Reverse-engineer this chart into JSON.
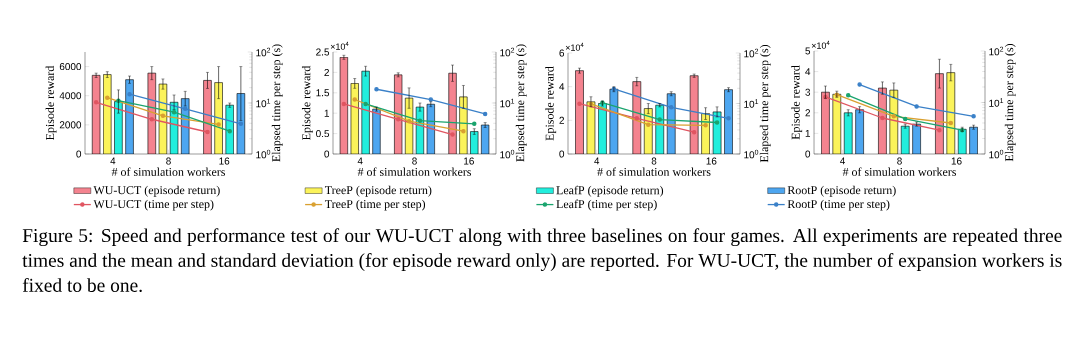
{
  "chart_data": [
    {
      "type": "bar",
      "xlabel": "# of simulation workers",
      "ylabel": "Episode reward",
      "y2label": "Elapsed time per step (s)",
      "categories": [
        "4",
        "8",
        "16"
      ],
      "ylim": [
        0,
        7000
      ],
      "yticks": [
        0,
        2000,
        4000,
        6000
      ],
      "y2lim": [
        1,
        100
      ],
      "y2ticks": [
        {
          "value": 1,
          "label": "10$^{0}$"
        },
        {
          "value": 10,
          "label": "10$^{1}$"
        },
        {
          "value": 100,
          "label": "10$^{2}$"
        }
      ],
      "log": "y2",
      "marker": "circle",
      "legend": "bottom",
      "annotations": [
        "Figure 5: Speed and performance test of our WU-UCT along with three baselines on four games. All experiments are repeated three times and the mean and standard deviation (for episode reward only) are reported. For WU-UCT, the number of expansion workers is fixed to be one."
      ],
      "series": [
        {
          "name": "WU-UCT (episode return)",
          "color": "#f4838f",
          "values": [
            5400,
            5550,
            5050
          ],
          "errors": [
            150,
            450,
            550
          ]
        },
        {
          "name": "TreeP (episode return)",
          "color": "#fbf35a",
          "values": [
            5450,
            4800,
            4900
          ],
          "errors": [
            200,
            350,
            1100
          ]
        },
        {
          "name": "LeafP (episode return)",
          "color": "#22eedd",
          "values": [
            3600,
            3550,
            3350
          ],
          "errors": [
            800,
            500,
            150
          ]
        },
        {
          "name": "RootP (episode return)",
          "color": "#4da6f0",
          "values": [
            5100,
            3800,
            4150
          ],
          "errors": [
            250,
            500,
            1850
          ]
        },
        {
          "name": "WU-UCT (time per step)",
          "type": "line",
          "axis": "y2",
          "color": "#e05561",
          "values": [
            10.3,
            4.8,
            2.7
          ]
        },
        {
          "name": "TreeP (time per step)",
          "type": "line",
          "axis": "y2",
          "color": "#d9a030",
          "values": [
            12.7,
            5.6,
            3.8
          ]
        },
        {
          "name": "LeafP (time per step)",
          "type": "line",
          "axis": "y2",
          "color": "#1aa46e",
          "values": [
            11.1,
            6.6,
            2.8
          ]
        },
        {
          "name": "RootP (time per step)",
          "type": "line",
          "axis": "y2",
          "color": "#3a80c8",
          "values": [
            14.9,
            7.7,
            3.9
          ]
        }
      ]
    },
    {
      "type": "bar",
      "xlabel": "# of simulation workers",
      "ylabel": "Episode reward",
      "y2label": "Elapsed time per step (s)",
      "categories": [
        "4",
        "8",
        "16"
      ],
      "ylim": [
        0,
        2.5
      ],
      "yticks": [
        0,
        0.5,
        1,
        1.5,
        2,
        2.5
      ],
      "y2lim": [
        1,
        100
      ],
      "y2ticks": [
        {
          "value": 1,
          "label": "10$^{0}$"
        },
        {
          "value": 10,
          "label": "10$^{1}$"
        },
        {
          "value": 100,
          "label": "10$^{2}$"
        }
      ],
      "log": "y2",
      "marker": "circle",
      "annotations": [
        "×10$^{4}$"
      ],
      "series": [
        {
          "color": "#f4838f",
          "values": [
            2.37,
            1.94,
            1.98
          ],
          "errors": [
            0.05,
            0.05,
            0.2
          ]
        },
        {
          "color": "#fbf35a",
          "values": [
            1.73,
            1.37,
            1.4
          ],
          "errors": [
            0.12,
            0.25,
            0.28
          ]
        },
        {
          "color": "#22eedd",
          "values": [
            2.03,
            1.15,
            0.55
          ],
          "errors": [
            0.12,
            0.1,
            0.07
          ]
        },
        {
          "color": "#4da6f0",
          "values": [
            1.1,
            1.22,
            0.71
          ],
          "errors": [
            0.05,
            0.06,
            0.06
          ]
        },
        {
          "type": "line",
          "axis": "y2",
          "color": "#e05561",
          "values": [
            9.6,
            4.8,
            2.4
          ]
        },
        {
          "type": "line",
          "axis": "y2",
          "color": "#d9a030",
          "values": [
            11.7,
            4.4,
            2.8
          ]
        },
        {
          "type": "line",
          "axis": "y2",
          "color": "#1aa46e",
          "values": [
            9.6,
            4.5,
            3.9
          ]
        },
        {
          "type": "line",
          "axis": "y2",
          "color": "#3a80c8",
          "values": [
            18.6,
            11.7,
            6.1
          ]
        }
      ]
    },
    {
      "type": "bar",
      "xlabel": "# of simulation workers",
      "ylabel": "Episode reward",
      "y2label": "Elapsed time per step (s)",
      "categories": [
        "4",
        "8",
        "16"
      ],
      "ylim": [
        0,
        6
      ],
      "yticks": [
        0,
        2,
        4,
        6
      ],
      "y2lim": [
        1,
        100
      ],
      "y2ticks": [
        {
          "value": 1,
          "label": "10$^{0}$"
        },
        {
          "value": 10,
          "label": "10$^{1}$"
        },
        {
          "value": 100,
          "label": "10$^{2}$"
        }
      ],
      "log": "y2",
      "marker": "circle",
      "annotations": [
        "×10$^{4}$"
      ],
      "series": [
        {
          "color": "#f4838f",
          "values": [
            4.95,
            4.3,
            4.65
          ],
          "errors": [
            0.15,
            0.25,
            0.1
          ]
        },
        {
          "color": "#fbf35a",
          "values": [
            3.1,
            2.7,
            2.4
          ],
          "errors": [
            0.3,
            0.3,
            0.35
          ]
        },
        {
          "color": "#22eedd",
          "values": [
            3.0,
            2.9,
            2.5
          ],
          "errors": [
            0.15,
            0.1,
            0.3
          ]
        },
        {
          "color": "#4da6f0",
          "values": [
            3.85,
            3.58,
            3.82
          ],
          "errors": [
            0.15,
            0.12,
            0.12
          ]
        },
        {
          "type": "line",
          "axis": "y2",
          "color": "#e05561",
          "values": [
            9.9,
            5.1,
            2.7
          ]
        },
        {
          "type": "line",
          "axis": "y2",
          "color": "#d9a030",
          "values": [
            9.8,
            3.8,
            3.7
          ]
        },
        {
          "type": "line",
          "axis": "y2",
          "color": "#1aa46e",
          "values": [
            10.4,
            4.8,
            4.2
          ]
        },
        {
          "type": "line",
          "axis": "y2",
          "color": "#3a80c8",
          "values": [
            19.4,
            8.4,
            5.1
          ]
        }
      ]
    },
    {
      "type": "bar",
      "xlabel": "# of simulation workers",
      "ylabel": "Episode reward",
      "y2label": "Elapsed time per step (s)",
      "categories": [
        "4",
        "8",
        "16"
      ],
      "ylim": [
        0,
        5
      ],
      "yticks": [
        0,
        1,
        2,
        3,
        4,
        5
      ],
      "y2lim": [
        1,
        100
      ],
      "y2ticks": [
        {
          "value": 1,
          "label": "10$^{0}$"
        },
        {
          "value": 10,
          "label": "10$^{1}$"
        },
        {
          "value": 100,
          "label": "10$^{2}$"
        }
      ],
      "log": "y2",
      "marker": "circle",
      "annotations": [
        "×10$^{4}$"
      ],
      "series": [
        {
          "color": "#f4838f",
          "values": [
            3.0,
            3.2,
            3.9
          ],
          "errors": [
            0.3,
            0.3,
            0.7
          ]
        },
        {
          "color": "#fbf35a",
          "values": [
            2.9,
            3.1,
            3.95
          ],
          "errors": [
            0.15,
            0.35,
            0.4
          ]
        },
        {
          "color": "#22eedd",
          "values": [
            2.0,
            1.35,
            1.2
          ],
          "errors": [
            0.15,
            0.1,
            0.1
          ]
        },
        {
          "color": "#4da6f0",
          "values": [
            2.15,
            1.45,
            1.3
          ],
          "errors": [
            0.15,
            0.1,
            0.1
          ]
        },
        {
          "type": "line",
          "axis": "y2",
          "color": "#e05561",
          "values": [
            12.8,
            5.0,
            2.9
          ]
        },
        {
          "type": "line",
          "axis": "y2",
          "color": "#d9a030",
          "values": [
            14.2,
            5.4,
            4.0
          ]
        },
        {
          "type": "line",
          "axis": "y2",
          "color": "#1aa46e",
          "values": [
            13.8,
            4.8,
            2.9
          ]
        },
        {
          "type": "line",
          "axis": "y2",
          "color": "#3a80c8",
          "values": [
            22.3,
            8.4,
            5.4
          ]
        }
      ]
    }
  ]
}
